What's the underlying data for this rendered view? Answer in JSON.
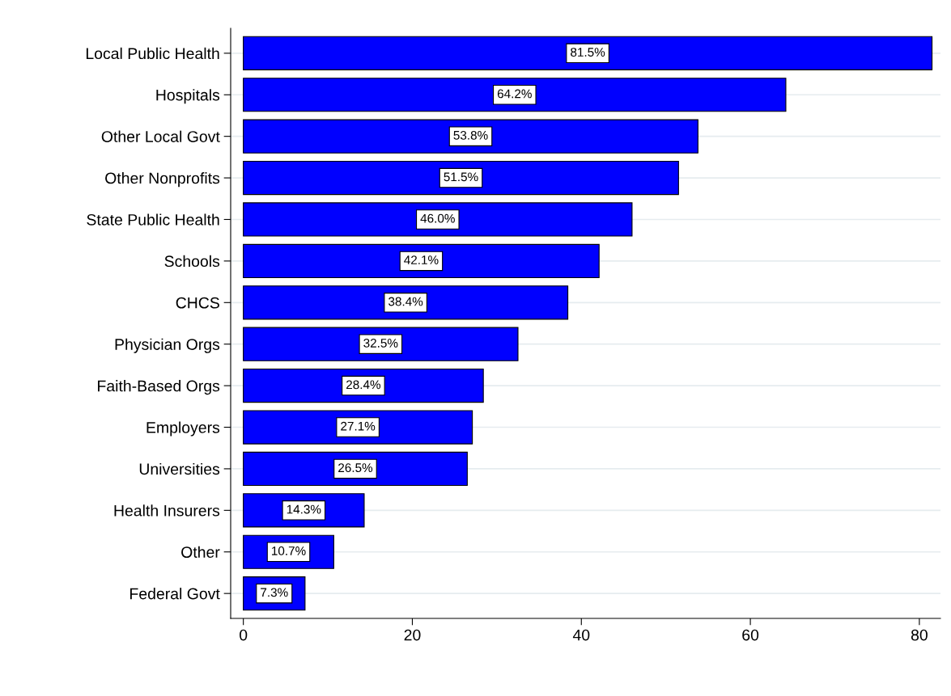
{
  "chart_data": {
    "type": "bar",
    "orientation": "horizontal",
    "categories": [
      "Local Public Health",
      "Hospitals",
      "Other Local Govt",
      "Other Nonprofits",
      "State Public Health",
      "Schools",
      "CHCS",
      "Physician Orgs",
      "Faith-Based Orgs",
      "Employers",
      "Universities",
      "Health Insurers",
      "Other",
      "Federal Govt"
    ],
    "values": [
      81.5,
      64.2,
      53.8,
      51.5,
      46.0,
      42.1,
      38.4,
      32.5,
      28.4,
      27.1,
      26.5,
      14.3,
      10.7,
      7.3
    ],
    "value_labels": [
      "81.5%",
      "64.2%",
      "53.8%",
      "51.5%",
      "46.0%",
      "42.1%",
      "38.4%",
      "32.5%",
      "28.4%",
      "27.1%",
      "26.5%",
      "14.3%",
      "10.7%",
      "7.3%"
    ],
    "color": "#0000ff",
    "xlim": [
      -1.5,
      82.5
    ],
    "xticks": [
      0,
      20,
      40,
      60,
      80
    ],
    "grid": "y",
    "legend": false
  }
}
